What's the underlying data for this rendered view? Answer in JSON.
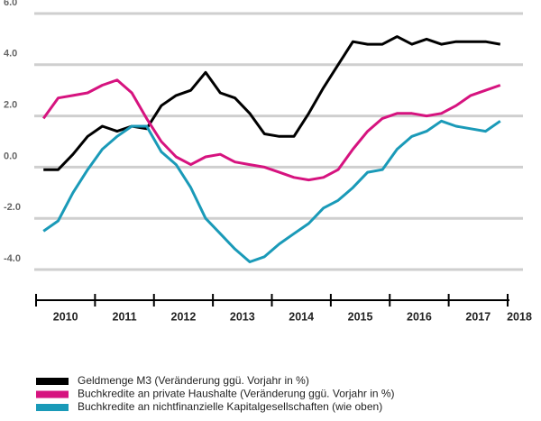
{
  "chart_data": {
    "type": "line",
    "x": [
      2010.125,
      2010.375,
      2010.625,
      2010.875,
      2011.125,
      2011.375,
      2011.625,
      2011.875,
      2012.125,
      2012.375,
      2012.625,
      2012.875,
      2013.125,
      2013.375,
      2013.625,
      2013.875,
      2014.125,
      2014.375,
      2014.625,
      2014.875,
      2015.125,
      2015.375,
      2015.625,
      2015.875,
      2016.125,
      2016.375,
      2016.625,
      2016.875,
      2017.125,
      2017.375,
      2017.625,
      2017.875
    ],
    "series": [
      {
        "name": "Geldmenge M3 (Veränderung ggü. Vorjahr in %)",
        "color": "#000000",
        "values": [
          -0.1,
          -0.1,
          0.5,
          1.2,
          1.6,
          1.4,
          1.6,
          1.5,
          2.4,
          2.8,
          3.0,
          3.7,
          2.9,
          2.7,
          2.1,
          1.3,
          1.2,
          1.2,
          2.1,
          3.1,
          4.0,
          4.9,
          4.8,
          4.8,
          5.1,
          4.8,
          5.0,
          4.8,
          4.9,
          4.9,
          4.9,
          4.8
        ]
      },
      {
        "name": "Buchkredite an private Haushalte (Veränderung ggü. Vorjahr in %)",
        "color": "#d6137f",
        "values": [
          1.9,
          2.7,
          2.8,
          2.9,
          3.2,
          3.4,
          2.9,
          1.9,
          1.0,
          0.4,
          0.1,
          0.4,
          0.5,
          0.2,
          0.1,
          0.0,
          -0.2,
          -0.4,
          -0.5,
          -0.4,
          -0.1,
          0.7,
          1.4,
          1.9,
          2.1,
          2.1,
          2.0,
          2.1,
          2.4,
          2.8,
          3.0,
          3.2
        ]
      },
      {
        "name": "Buchkredite an nichtfinanzielle Kapitalgesellschaften (wie oben)",
        "color": "#1a9ab8",
        "values": [
          -2.5,
          -2.1,
          -1.0,
          -0.1,
          0.7,
          1.2,
          1.6,
          1.6,
          0.6,
          0.1,
          -0.8,
          -2.0,
          -2.6,
          -3.2,
          -3.7,
          -3.5,
          -3.0,
          -2.6,
          -2.2,
          -1.6,
          -1.3,
          -0.8,
          -0.2,
          -0.1,
          0.7,
          1.2,
          1.4,
          1.8,
          1.6,
          1.5,
          1.4,
          1.8
        ]
      }
    ],
    "xlim": [
      2010,
      2018
    ],
    "xticks": [
      2010,
      2011,
      2012,
      2013,
      2014,
      2015,
      2016,
      2017,
      2018
    ],
    "ylim": [
      -4,
      6
    ],
    "yticks": [
      {
        "value": 6,
        "label": "6.0"
      },
      {
        "value": 4,
        "label": "4.0"
      },
      {
        "value": 2,
        "label": "2.0"
      },
      {
        "value": 0,
        "label": "0.0"
      },
      {
        "value": -2,
        "label": "-2.0"
      },
      {
        "value": -4,
        "label": "-4.0"
      }
    ],
    "grid": true
  }
}
